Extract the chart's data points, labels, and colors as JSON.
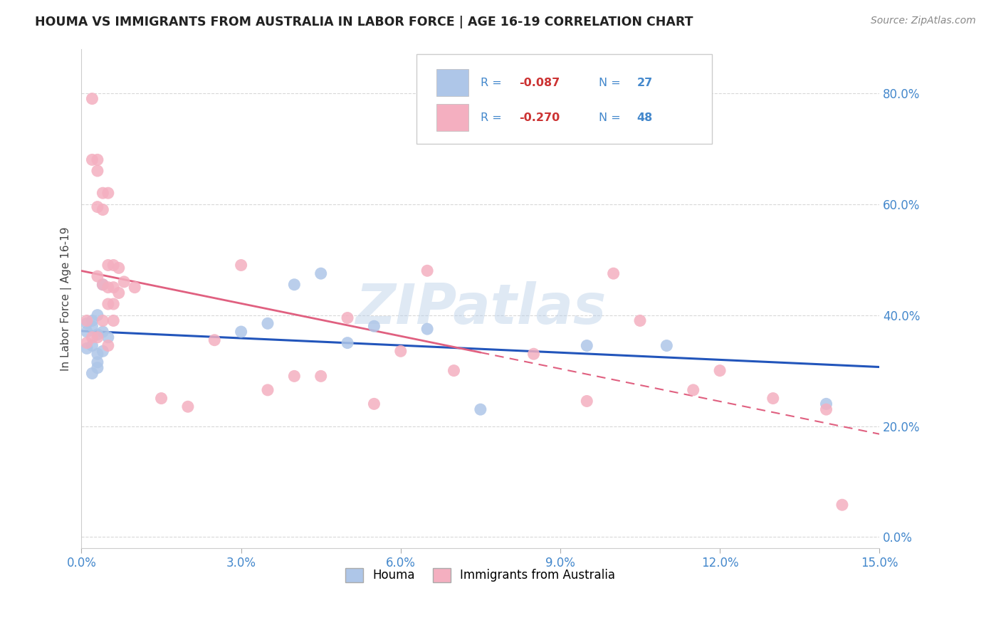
{
  "title": "HOUMA VS IMMIGRANTS FROM AUSTRALIA IN LABOR FORCE | AGE 16-19 CORRELATION CHART",
  "source_text": "Source: ZipAtlas.com",
  "ylabel": "In Labor Force | Age 16-19",
  "watermark": "ZIPatlas",
  "legend_1_label": "R = -0.087   N = 27",
  "legend_2_label": "R = -0.270   N = 48",
  "houma_color": "#aec6e8",
  "australia_color": "#f4afc0",
  "houma_line_color": "#2255bb",
  "australia_line_color": "#e06080",
  "tick_color": "#4488cc",
  "xlim": [
    0.0,
    0.15
  ],
  "ylim": [
    -0.02,
    0.88
  ],
  "yticks": [
    0.0,
    0.2,
    0.4,
    0.6,
    0.8
  ],
  "xticks": [
    0.0,
    0.03,
    0.06,
    0.09,
    0.12,
    0.15
  ],
  "houma_x": [
    0.001,
    0.001,
    0.001,
    0.002,
    0.002,
    0.002,
    0.002,
    0.003,
    0.003,
    0.003,
    0.003,
    0.003,
    0.004,
    0.004,
    0.004,
    0.005,
    0.03,
    0.035,
    0.04,
    0.045,
    0.05,
    0.055,
    0.065,
    0.075,
    0.095,
    0.11,
    0.14
  ],
  "houma_y": [
    0.385,
    0.37,
    0.34,
    0.39,
    0.345,
    0.38,
    0.295,
    0.4,
    0.365,
    0.33,
    0.315,
    0.305,
    0.455,
    0.37,
    0.335,
    0.36,
    0.37,
    0.385,
    0.455,
    0.475,
    0.35,
    0.38,
    0.375,
    0.23,
    0.345,
    0.345,
    0.24
  ],
  "australia_x": [
    0.001,
    0.001,
    0.002,
    0.002,
    0.002,
    0.003,
    0.003,
    0.003,
    0.003,
    0.003,
    0.004,
    0.004,
    0.004,
    0.004,
    0.005,
    0.005,
    0.005,
    0.005,
    0.005,
    0.006,
    0.006,
    0.006,
    0.006,
    0.007,
    0.007,
    0.008,
    0.01,
    0.015,
    0.02,
    0.025,
    0.03,
    0.035,
    0.04,
    0.045,
    0.05,
    0.055,
    0.06,
    0.065,
    0.07,
    0.085,
    0.095,
    0.1,
    0.105,
    0.115,
    0.12,
    0.13,
    0.14,
    0.143
  ],
  "australia_y": [
    0.39,
    0.35,
    0.79,
    0.68,
    0.36,
    0.68,
    0.66,
    0.595,
    0.47,
    0.36,
    0.62,
    0.59,
    0.455,
    0.39,
    0.62,
    0.49,
    0.45,
    0.42,
    0.345,
    0.49,
    0.45,
    0.42,
    0.39,
    0.485,
    0.44,
    0.46,
    0.45,
    0.25,
    0.235,
    0.355,
    0.49,
    0.265,
    0.29,
    0.29,
    0.395,
    0.24,
    0.335,
    0.48,
    0.3,
    0.33,
    0.245,
    0.475,
    0.39,
    0.265,
    0.3,
    0.25,
    0.23,
    0.058
  ],
  "background_color": "#ffffff",
  "grid_color": "#d8d8d8"
}
